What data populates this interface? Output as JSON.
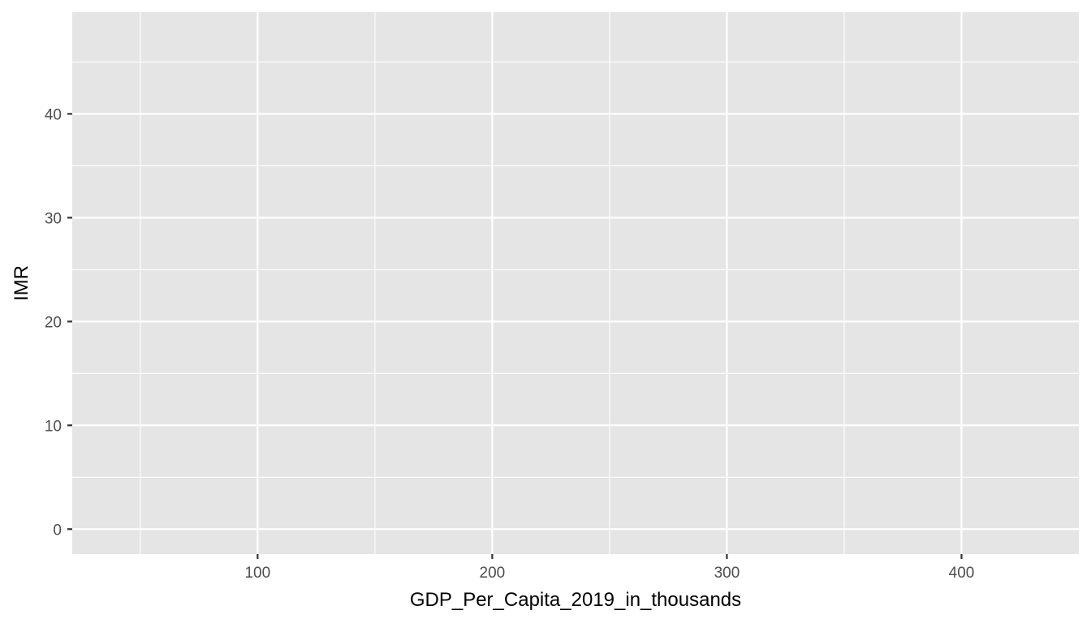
{
  "chart_data": {
    "type": "scatter",
    "title": "",
    "xlabel": "GDP_Per_Capita_2019_in_thousands",
    "ylabel": "IMR",
    "xlim": [
      21,
      450
    ],
    "ylim": [
      -2.4,
      49.8
    ],
    "x_ticks": [
      100,
      200,
      300,
      400
    ],
    "x_minor_ticks": [
      50,
      150,
      250,
      350
    ],
    "y_ticks": [
      0,
      10,
      20,
      30,
      40
    ],
    "y_minor_ticks": [
      5,
      15,
      25,
      35,
      45
    ],
    "grid": true,
    "legend": "none",
    "series": [],
    "colors": {
      "panel_background": "#e5e5e5",
      "grid_line": "#ffffff",
      "tick_label": "#4d4d4d",
      "tick_mark": "#333333",
      "axis_title": "#000000"
    }
  }
}
